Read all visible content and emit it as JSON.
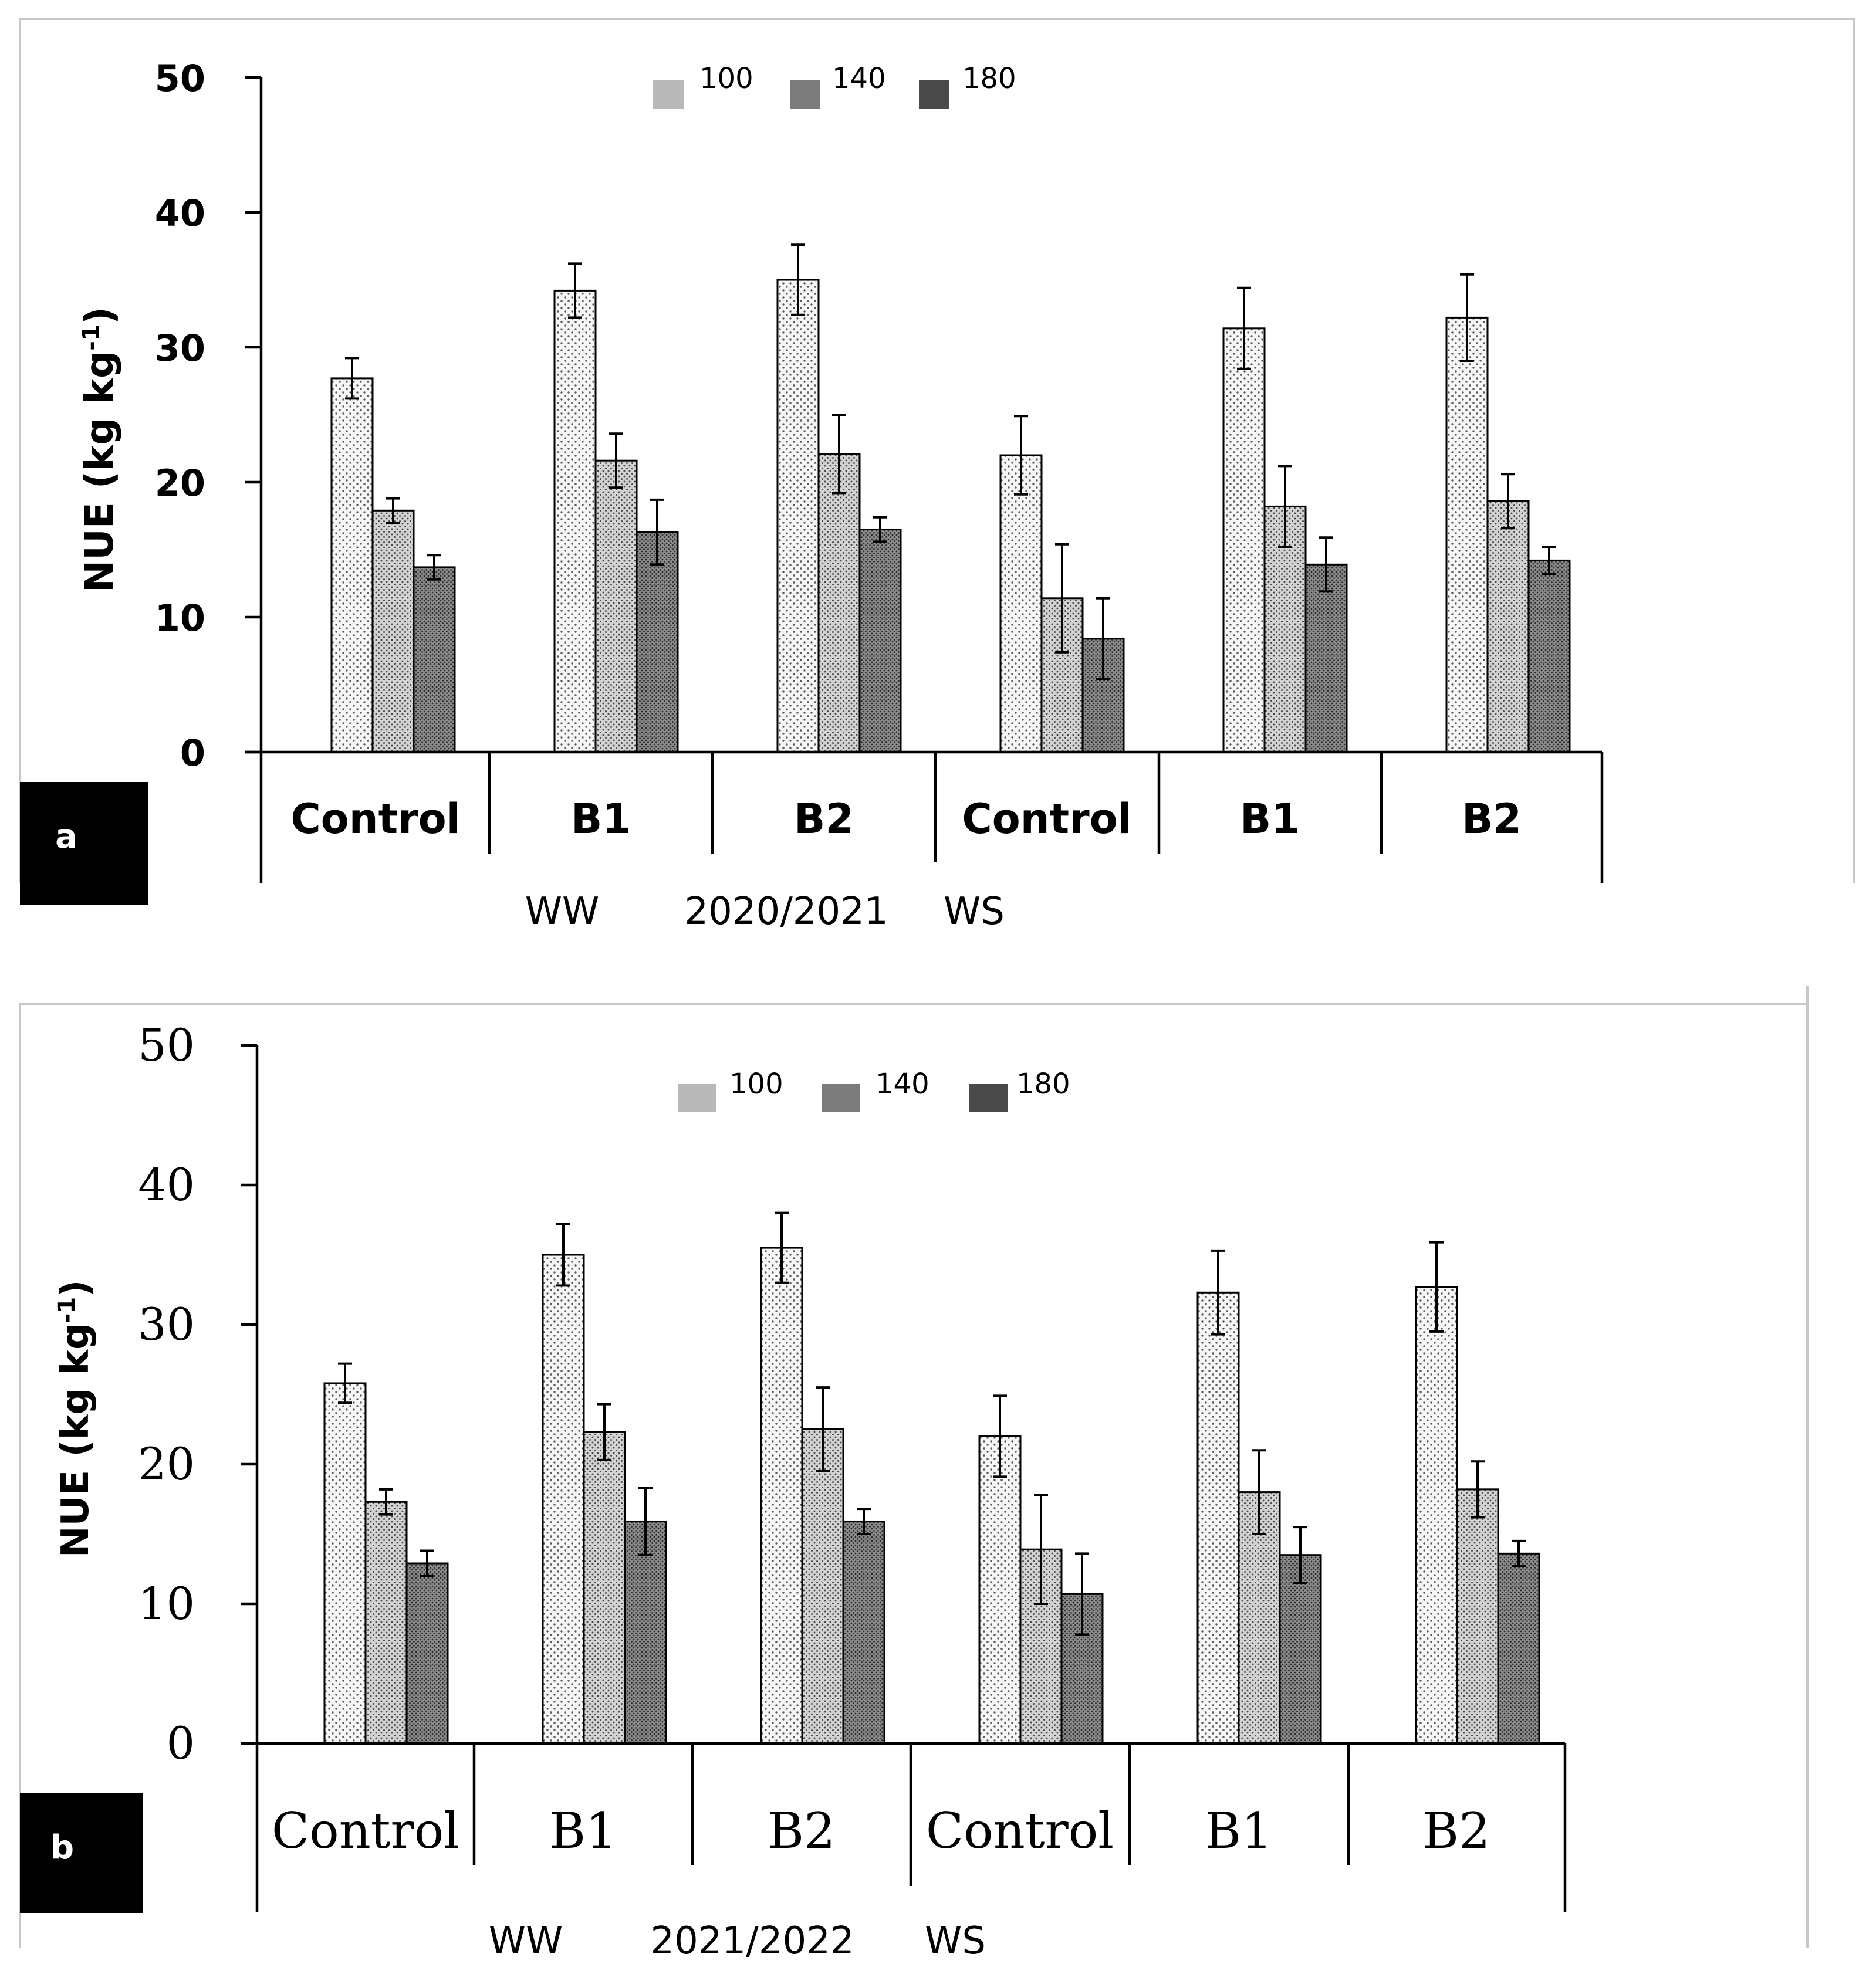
{
  "colors": {
    "series_1": "#f3f3f3",
    "series_2": "#c9c9c9",
    "series_3": "#7a7a7a",
    "legend_1": "#b9b9b9",
    "legend_2": "#7c7c7c",
    "legend_3": "#4a4a4a"
  },
  "chart_data": [
    {
      "panel_label": "a",
      "type": "bar",
      "ylabel": "NUE (kg kg",
      "ylabel_sup": "-1",
      "ylabel_close": ")",
      "ylim": [
        0,
        50
      ],
      "yticks": [
        "0",
        "10",
        "20",
        "30",
        "40",
        "50"
      ],
      "categories": [
        "Control",
        "B1",
        "B2",
        "Control",
        "B1",
        "B2"
      ],
      "group_labels": [
        "WW",
        "2020/2021",
        "WS"
      ],
      "legend_location": "top-center",
      "series": [
        {
          "name": "100",
          "values": [
            27.7,
            34.2,
            35.0,
            22.0,
            31.4,
            32.2
          ],
          "errors": [
            1.5,
            2.0,
            2.6,
            2.9,
            3.0,
            3.2
          ]
        },
        {
          "name": "140",
          "values": [
            17.9,
            21.6,
            22.1,
            11.4,
            18.2,
            18.6
          ],
          "errors": [
            0.9,
            2.0,
            2.9,
            4.0,
            3.0,
            2.0
          ]
        },
        {
          "name": "180",
          "values": [
            13.7,
            16.3,
            16.5,
            8.4,
            13.9,
            14.2
          ],
          "errors": [
            0.9,
            2.4,
            0.9,
            3.0,
            2.0,
            1.0
          ]
        }
      ]
    },
    {
      "panel_label": "b",
      "type": "bar",
      "ylabel": "NUE (kg kg",
      "ylabel_sup": "-1",
      "ylabel_close": ")",
      "ylim": [
        0,
        50
      ],
      "yticks": [
        "0",
        "10",
        "20",
        "30",
        "40",
        "50"
      ],
      "categories": [
        "Control",
        "B1",
        "B2",
        "Control",
        "B1",
        "B2"
      ],
      "group_labels": [
        "WW",
        "2021/2022",
        "WS"
      ],
      "legend_location": "top-center",
      "series": [
        {
          "name": "100",
          "values": [
            25.8,
            35.0,
            35.5,
            22.0,
            32.3,
            32.7
          ],
          "errors": [
            1.4,
            2.2,
            2.5,
            2.9,
            3.0,
            3.2
          ]
        },
        {
          "name": "140",
          "values": [
            17.3,
            22.3,
            22.5,
            13.9,
            18.0,
            18.2
          ],
          "errors": [
            0.9,
            2.0,
            3.0,
            3.9,
            3.0,
            2.0
          ]
        },
        {
          "name": "180",
          "values": [
            12.9,
            15.9,
            15.9,
            10.7,
            13.5,
            13.6
          ],
          "errors": [
            0.9,
            2.4,
            0.9,
            2.9,
            2.0,
            0.9
          ]
        }
      ]
    }
  ]
}
